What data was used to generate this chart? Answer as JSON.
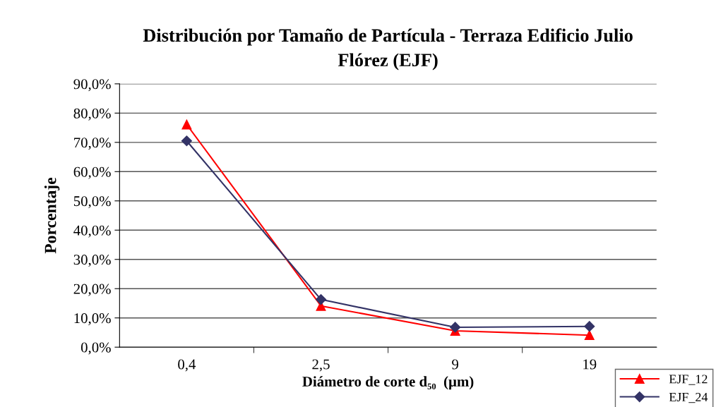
{
  "chart_data": {
    "type": "line",
    "title": "Distribución por Tamaño de Partícula - Terraza Edificio Julio\nFlórez (EJF)",
    "xlabel": "Diámetro de corte d₅₀  (µm)",
    "ylabel": "Porcentaje",
    "categories": [
      "0,4",
      "2,5",
      "9",
      "19"
    ],
    "series": [
      {
        "name": "EJF_12",
        "color": "#ff0000",
        "marker": "triangle",
        "values": [
          76.1,
          14.1,
          5.6,
          4.1
        ]
      },
      {
        "name": "EJF_24",
        "color": "#333366",
        "marker": "diamond",
        "values": [
          70.5,
          16.3,
          6.8,
          7.1
        ]
      }
    ],
    "ylim": [
      0,
      90
    ],
    "yticks": [
      {
        "value": 0,
        "label": "0,0%"
      },
      {
        "value": 10,
        "label": "10,0%"
      },
      {
        "value": 20,
        "label": "20,0%"
      },
      {
        "value": 30,
        "label": "30,0%"
      },
      {
        "value": 40,
        "label": "40,0%"
      },
      {
        "value": 50,
        "label": "50,0%"
      },
      {
        "value": 60,
        "label": "60,0%"
      },
      {
        "value": 70,
        "label": "70,0%"
      },
      {
        "value": 80,
        "label": "80,0%"
      },
      {
        "value": 90,
        "label": "90,0%"
      }
    ],
    "grid": "y",
    "legend": "bottom right",
    "line_style": "solid"
  }
}
